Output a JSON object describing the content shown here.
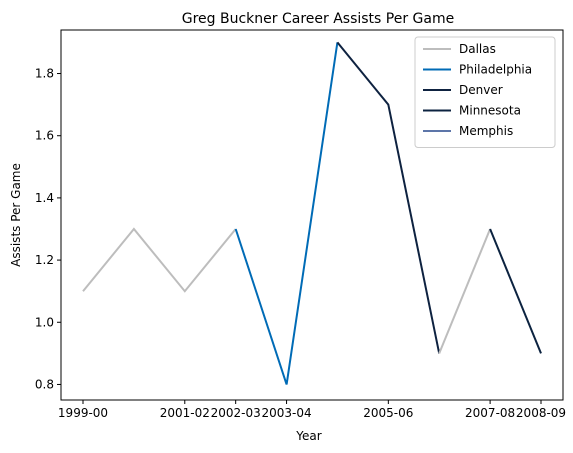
{
  "chart_data": {
    "type": "line",
    "title": "Greg Buckner Career Assists Per Game",
    "xlabel": "Year",
    "ylabel": "Assists Per Game",
    "x": [
      "1999-00",
      "2000-01",
      "2001-02",
      "2002-03",
      "2003-04",
      "2004-05",
      "2005-06",
      "2006-07",
      "2007-08",
      "2008-09"
    ],
    "xticks": [
      "1999-00",
      "2001-02",
      "2002-03",
      "2003-04",
      "2005-06",
      "2007-08",
      "2008-09"
    ],
    "yticks": [
      "0.8",
      "1.0",
      "1.2",
      "1.4",
      "1.6",
      "1.8"
    ],
    "ylim": [
      0.75,
      1.94
    ],
    "grid": false,
    "legend_position": "top-right",
    "series": [
      {
        "name": "Dallas",
        "color": "#bdbdbd",
        "points": [
          [
            "1999-00",
            1.1
          ],
          [
            "2000-01",
            1.3
          ],
          [
            "2001-02",
            1.1
          ],
          [
            "2002-03",
            1.3
          ]
        ]
      },
      {
        "name": "Philadelphia",
        "color": "#006bb6",
        "points": [
          [
            "2002-03",
            1.3
          ],
          [
            "2003-04",
            0.8
          ],
          [
            "2004-05",
            1.9
          ]
        ]
      },
      {
        "name": "Denver",
        "color": "#0e2240",
        "points": [
          [
            "2004-05",
            1.9
          ],
          [
            "2005-06",
            1.7
          ],
          [
            "2006-07",
            0.9
          ]
        ]
      },
      {
        "name": "Dallas",
        "color": "#bdbdbd",
        "legend": false,
        "points": [
          [
            "2006-07",
            0.9
          ],
          [
            "2007-08",
            1.3
          ]
        ]
      },
      {
        "name": "Minnesota",
        "color": "#0c2340",
        "points": [
          [
            "2007-08",
            1.3
          ],
          [
            "2008-09",
            0.9
          ]
        ]
      },
      {
        "name": "Memphis",
        "color": "#5d76a9",
        "points": []
      }
    ]
  }
}
